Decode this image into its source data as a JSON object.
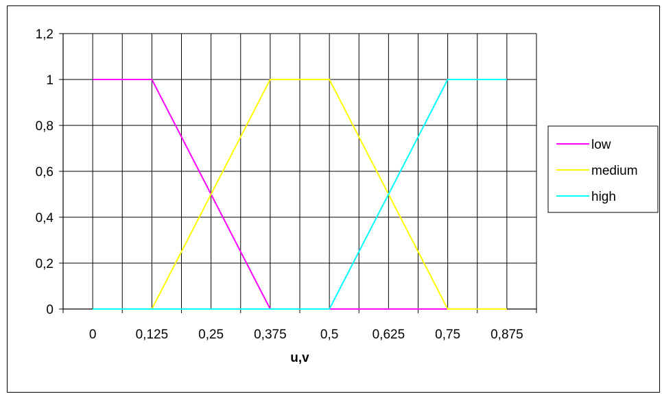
{
  "chart_data": {
    "type": "line",
    "title": "",
    "xlabel": "u,v",
    "ylabel": "",
    "x": [
      0,
      0.125,
      0.25,
      0.375,
      0.5,
      0.625,
      0.75,
      0.875
    ],
    "x_tick_labels": [
      "0",
      "0,125",
      "0,25",
      "0,375",
      "0,5",
      "0,625",
      "0,75",
      "0,875"
    ],
    "y_tick_labels": [
      "0",
      "0,2",
      "0,4",
      "0,6",
      "0,8",
      "1",
      "1,2"
    ],
    "ylim": [
      0,
      1.2
    ],
    "grid": true,
    "legend_position": "right",
    "series": [
      {
        "name": "low",
        "color": "#ff00ff",
        "points": [
          [
            0,
            1
          ],
          [
            0.125,
            1
          ],
          [
            0.375,
            0
          ],
          [
            0.875,
            0
          ]
        ]
      },
      {
        "name": "medium",
        "color": "#ffff00",
        "points": [
          [
            0,
            0
          ],
          [
            0.125,
            0
          ],
          [
            0.375,
            1
          ],
          [
            0.5,
            1
          ],
          [
            0.75,
            0
          ],
          [
            0.875,
            0
          ]
        ]
      },
      {
        "name": "high",
        "color": "#00ffff",
        "points": [
          [
            0,
            0
          ],
          [
            0.5,
            0
          ],
          [
            0.75,
            1
          ],
          [
            0.875,
            1
          ]
        ]
      }
    ]
  }
}
